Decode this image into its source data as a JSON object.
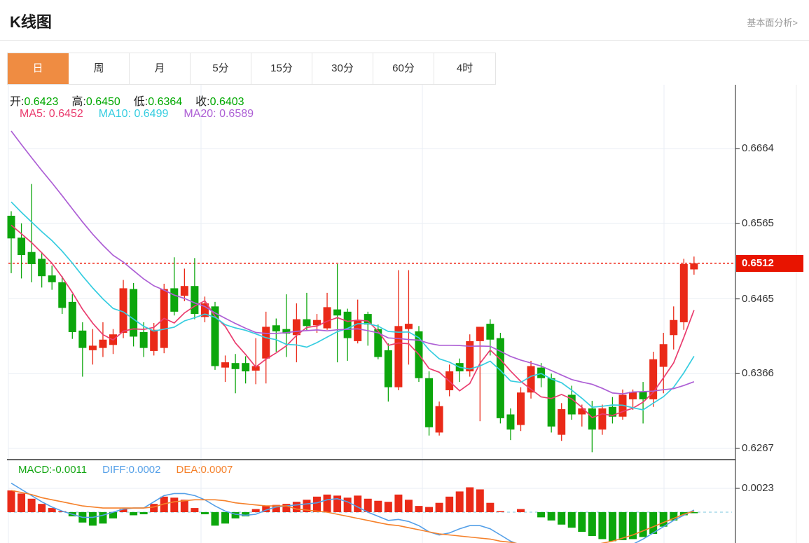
{
  "header": {
    "title": "K线图",
    "link_label": "基本面分析>"
  },
  "tabs": {
    "items": [
      "日",
      "周",
      "月",
      "5分",
      "15分",
      "30分",
      "60分",
      "4时"
    ],
    "active_index": 0
  },
  "legend": {
    "ohlc": [
      {
        "label": "开:",
        "value": "0.6423"
      },
      {
        "label": "高:",
        "value": "0.6450"
      },
      {
        "label": "低:",
        "value": "0.6364"
      },
      {
        "label": "收:",
        "value": "0.6403"
      }
    ],
    "ma": [
      {
        "label": "MA5:",
        "value": "0.6452"
      },
      {
        "label": "MA10:",
        "value": "0.6499"
      },
      {
        "label": "MA20:",
        "value": "0.6589"
      }
    ],
    "macd": [
      {
        "label": "MACD:",
        "value": "-0.0011"
      },
      {
        "label": "DIFF:",
        "value": "0.0002"
      },
      {
        "label": "DEA:",
        "value": "0.0007"
      }
    ]
  },
  "colors": {
    "up": "#ea2a18",
    "down": "#0ca60c",
    "ohlc_value": "#00a800",
    "ma5": "#ea3d6f",
    "ma10": "#36cde0",
    "ma20": "#ad5fd5",
    "diff": "#55a0e8",
    "dea": "#f5812b",
    "macd_value": "#15a715",
    "last_price_line": "#f4574c",
    "badge_bg": "#e81400",
    "accent_tab": "#ef8c42",
    "link": "#999999"
  },
  "chart_data": {
    "type": "candlestick+macd",
    "title": "K线图 (daily K-line with MA5/MA10/MA20 and MACD)",
    "legend_position": "top-left",
    "grid": true,
    "price_axis": {
      "ticks": [
        0.6664,
        0.6565,
        0.6465,
        0.6366,
        0.6267
      ],
      "last_price": 0.6512,
      "last_price_label": "0.6512"
    },
    "macd_axis": {
      "ticks": [
        0.0023
      ],
      "zero_line": 0
    },
    "prehistory_closes": [
      0.69,
      0.688,
      0.6858,
      0.6836,
      0.6814,
      0.6792,
      0.677,
      0.6748,
      0.6726,
      0.6704,
      0.6682,
      0.666,
      0.664,
      0.6622,
      0.6606,
      0.6592,
      0.658,
      0.657,
      0.6562,
      0.6556
    ],
    "candles": [
      [
        0.6575,
        0.6581,
        0.6499,
        0.6545
      ],
      [
        0.6546,
        0.6565,
        0.6492,
        0.6523
      ],
      [
        0.6527,
        0.6617,
        0.6487,
        0.6511
      ],
      [
        0.6518,
        0.6527,
        0.648,
        0.6495
      ],
      [
        0.6496,
        0.6509,
        0.6477,
        0.6487
      ],
      [
        0.6487,
        0.6495,
        0.6445,
        0.6453
      ],
      [
        0.6461,
        0.6471,
        0.6412,
        0.6421
      ],
      [
        0.6423,
        0.6434,
        0.6362,
        0.64
      ],
      [
        0.6397,
        0.6425,
        0.6378,
        0.6403
      ],
      [
        0.64,
        0.6434,
        0.6388,
        0.6411
      ],
      [
        0.6404,
        0.6425,
        0.6392,
        0.6418
      ],
      [
        0.642,
        0.649,
        0.6413,
        0.6479
      ],
      [
        0.6478,
        0.6486,
        0.6402,
        0.6415
      ],
      [
        0.6421,
        0.6434,
        0.6388,
        0.64
      ],
      [
        0.6396,
        0.6433,
        0.639,
        0.6424
      ],
      [
        0.64,
        0.6485,
        0.6393,
        0.6478
      ],
      [
        0.6479,
        0.652,
        0.6443,
        0.6448
      ],
      [
        0.6469,
        0.6505,
        0.6462,
        0.6482
      ],
      [
        0.6482,
        0.6519,
        0.6438,
        0.6445
      ],
      [
        0.6441,
        0.6468,
        0.6434,
        0.6459
      ],
      [
        0.6455,
        0.6461,
        0.6371,
        0.6376
      ],
      [
        0.6374,
        0.639,
        0.6355,
        0.6381
      ],
      [
        0.638,
        0.6392,
        0.634,
        0.6372
      ],
      [
        0.638,
        0.6389,
        0.6353,
        0.6369
      ],
      [
        0.637,
        0.6413,
        0.6352,
        0.6376
      ],
      [
        0.6386,
        0.6448,
        0.6353,
        0.6428
      ],
      [
        0.643,
        0.6439,
        0.6395,
        0.6422
      ],
      [
        0.6425,
        0.6471,
        0.6388,
        0.6419
      ],
      [
        0.6417,
        0.6459,
        0.6381,
        0.6438
      ],
      [
        0.6438,
        0.6473,
        0.6423,
        0.6429
      ],
      [
        0.643,
        0.6445,
        0.642,
        0.6437
      ],
      [
        0.6426,
        0.6473,
        0.6424,
        0.6454
      ],
      [
        0.6451,
        0.6511,
        0.6381,
        0.6443
      ],
      [
        0.6448,
        0.6452,
        0.6383,
        0.6413
      ],
      [
        0.6409,
        0.6464,
        0.6406,
        0.6437
      ],
      [
        0.6445,
        0.6448,
        0.6403,
        0.6431
      ],
      [
        0.6425,
        0.6431,
        0.6385,
        0.6388
      ],
      [
        0.6397,
        0.6406,
        0.6329,
        0.6348
      ],
      [
        0.6348,
        0.6503,
        0.6344,
        0.6429
      ],
      [
        0.6425,
        0.6503,
        0.6378,
        0.6432
      ],
      [
        0.6422,
        0.6429,
        0.6355,
        0.636
      ],
      [
        0.636,
        0.6369,
        0.6284,
        0.6295
      ],
      [
        0.6288,
        0.6329,
        0.6284,
        0.6323
      ],
      [
        0.6344,
        0.6378,
        0.6336,
        0.6369
      ],
      [
        0.638,
        0.6386,
        0.6355,
        0.6369
      ],
      [
        0.6369,
        0.6418,
        0.6362,
        0.6409
      ],
      [
        0.6409,
        0.6421,
        0.6303,
        0.6428
      ],
      [
        0.6432,
        0.6438,
        0.639,
        0.6411
      ],
      [
        0.6413,
        0.642,
        0.63,
        0.6307
      ],
      [
        0.6312,
        0.632,
        0.6278,
        0.6292
      ],
      [
        0.6298,
        0.6348,
        0.629,
        0.6341
      ],
      [
        0.6341,
        0.6383,
        0.6333,
        0.6376
      ],
      [
        0.6374,
        0.638,
        0.6348,
        0.636
      ],
      [
        0.636,
        0.6366,
        0.6288,
        0.6296
      ],
      [
        0.6285,
        0.6327,
        0.6277,
        0.6319
      ],
      [
        0.6338,
        0.635,
        0.6305,
        0.6312
      ],
      [
        0.6312,
        0.6325,
        0.6296,
        0.632
      ],
      [
        0.632,
        0.633,
        0.6262,
        0.6292
      ],
      [
        0.6292,
        0.6325,
        0.6285,
        0.632
      ],
      [
        0.6322,
        0.6335,
        0.63,
        0.6309
      ],
      [
        0.6309,
        0.6345,
        0.6305,
        0.6338
      ],
      [
        0.6332,
        0.6345,
        0.6318,
        0.6342
      ],
      [
        0.6342,
        0.6355,
        0.63,
        0.6332
      ],
      [
        0.6332,
        0.6395,
        0.6322,
        0.6385
      ],
      [
        0.6375,
        0.642,
        0.634,
        0.6405
      ],
      [
        0.6417,
        0.6455,
        0.6398,
        0.6437
      ],
      [
        0.6434,
        0.6518,
        0.6424,
        0.6511
      ],
      [
        0.6504,
        0.6521,
        0.6497,
        0.6512
      ]
    ],
    "macd": {
      "hist": [
        0.0021,
        0.0018,
        0.0013,
        0.0008,
        0.0004,
        0.0001,
        -0.0004,
        -0.001,
        -0.0013,
        -0.0011,
        -0.0006,
        0.0003,
        -0.0003,
        -0.0002,
        0.0008,
        0.0015,
        0.0014,
        0.0012,
        0.0004,
        -0.0002,
        -0.0013,
        -0.0011,
        -0.0006,
        -0.0004,
        0.0003,
        0.0006,
        0.0007,
        0.0008,
        0.001,
        0.0012,
        0.0015,
        0.0017,
        0.0016,
        0.0014,
        0.0016,
        0.0013,
        0.0011,
        0.001,
        0.0017,
        0.0012,
        0.0006,
        0.0005,
        0.0009,
        0.0015,
        0.002,
        0.0024,
        0.0022,
        0.0009,
        0.0001,
        0.0,
        0.0003,
        0.0,
        -0.0005,
        -0.0008,
        -0.0012,
        -0.0015,
        -0.0019,
        -0.0023,
        -0.0026,
        -0.0028,
        -0.0027,
        -0.0026,
        -0.0024,
        -0.0021,
        -0.0014,
        -0.0008,
        -0.0003,
        -0.0001
      ],
      "diff": [
        0.0028,
        0.0022,
        0.0016,
        0.001,
        0.0005,
        0.0001,
        -0.0002,
        -0.0005,
        -0.0005,
        -0.0003,
        0.0,
        0.0003,
        0.0004,
        0.0004,
        0.001,
        0.0016,
        0.0018,
        0.0018,
        0.0016,
        0.0012,
        0.0006,
        0.0001,
        -0.0002,
        -0.0003,
        -0.0002,
        0.0002,
        0.0005,
        0.0006,
        0.0007,
        0.0008,
        0.0009,
        0.0012,
        0.0013,
        0.001,
        0.0005,
        0.0,
        -0.0004,
        -0.0008,
        -0.0007,
        -0.0009,
        -0.0013,
        -0.0019,
        -0.0022,
        -0.002,
        -0.0016,
        -0.0013,
        -0.0013,
        -0.0016,
        -0.0022,
        -0.0028,
        -0.0032,
        -0.0034,
        -0.0036,
        -0.0038,
        -0.0039,
        -0.004,
        -0.0041,
        -0.0041,
        -0.004,
        -0.0038,
        -0.0035,
        -0.0031,
        -0.0026,
        -0.002,
        -0.0014,
        -0.0008,
        -0.0003,
        0.0002
      ],
      "dea": [
        0.0021,
        0.0019,
        0.0017,
        0.0014,
        0.0012,
        0.001,
        0.0008,
        0.0006,
        0.0005,
        0.0004,
        0.0004,
        0.0004,
        0.0004,
        0.0004,
        0.0005,
        0.0008,
        0.001,
        0.0011,
        0.0012,
        0.0012,
        0.0012,
        0.0011,
        0.0009,
        0.0008,
        0.0007,
        0.0006,
        0.0006,
        0.0006,
        0.0003,
        0.0002,
        0.0001,
        0.0,
        -0.0002,
        -0.0004,
        -0.0006,
        -0.0008,
        -0.001,
        -0.0012,
        -0.0013,
        -0.0015,
        -0.0017,
        -0.0019,
        -0.0021,
        -0.0022,
        -0.0023,
        -0.0024,
        -0.0025,
        -0.0026,
        -0.0028,
        -0.0029,
        -0.0031,
        -0.0032,
        -0.0033,
        -0.0034,
        -0.0034,
        -0.0034,
        -0.0033,
        -0.0032,
        -0.003,
        -0.0028,
        -0.0025,
        -0.0022,
        -0.0018,
        -0.0014,
        -0.001,
        -0.0006,
        -0.0002,
        0.0001
      ]
    }
  }
}
